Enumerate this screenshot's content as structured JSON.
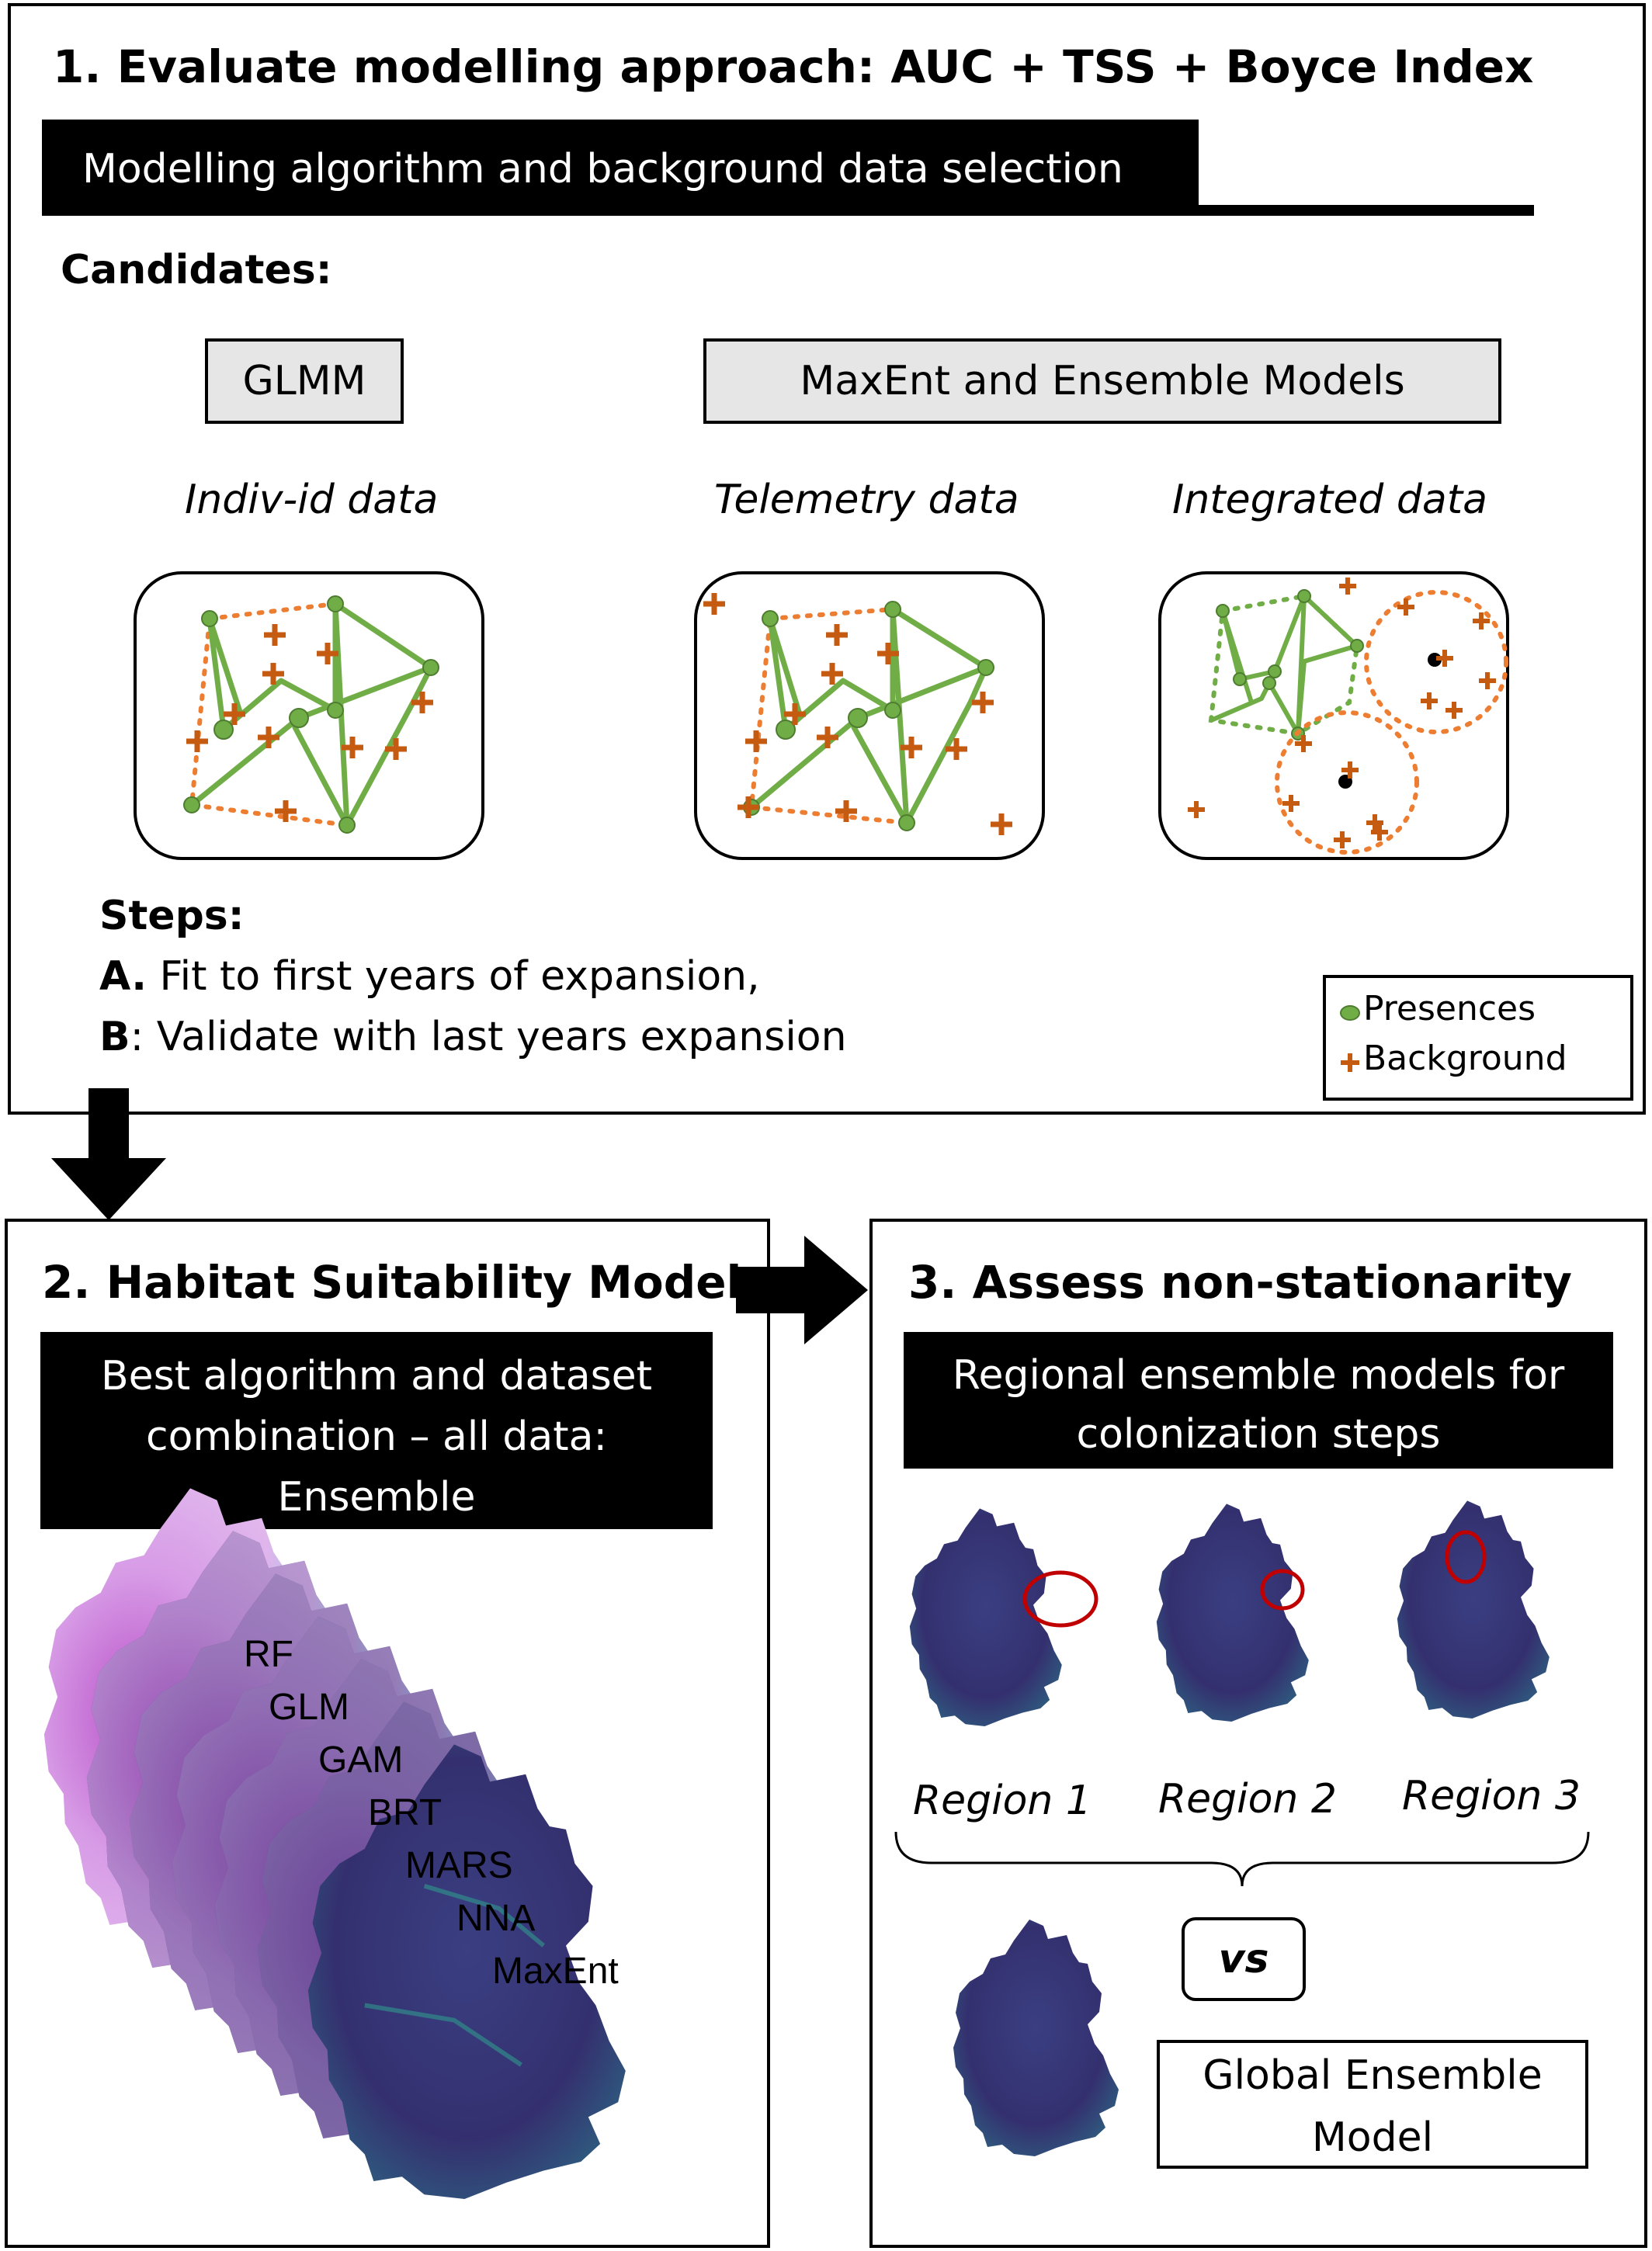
{
  "panel1": {
    "title": "1. Evaluate modelling approach: AUC + TSS + Boyce Index",
    "bar_label": "Modelling algorithm and background data selection",
    "candidates_label": "Candidates:",
    "glmm_label": "GLMM",
    "maxent_label": "MaxEnt and Ensemble Models",
    "data_types": [
      "Indiv-id data",
      "Telemetry data",
      "Integrated data"
    ],
    "steps_label": "Steps:",
    "step_a_key": "A.",
    "step_a_text": " Fit to first years of expansion,",
    "step_b_key": "B",
    "step_b_text": ":  Validate with last years expansion",
    "legend": {
      "presences": "Presences",
      "background": "Background"
    }
  },
  "panel2": {
    "title": "2. Habitat Suitability Model",
    "bar_lines": [
      "Best algorithm and dataset",
      "combination – all data:",
      "Ensemble"
    ],
    "models": [
      "RF",
      "GLM",
      "GAM",
      "BRT",
      "MARS",
      "NNA",
      "MaxEnt"
    ]
  },
  "panel3": {
    "title": "3. Assess non-stationarity",
    "bar_lines": [
      "Regional ensemble models for",
      "colonization steps"
    ],
    "regions": [
      "Region 1",
      "Region 2",
      "Region 3"
    ],
    "vs_label": "vs",
    "global_lines": [
      "Global Ensemble",
      "Model"
    ]
  },
  "colors": {
    "presence_green": "#70ad47",
    "background_orange": "#c55a11",
    "hull_orange": "#ed7d31",
    "map_dark": "#3b2d6e",
    "map_teal": "#2f8f8a",
    "highlight_red": "#c00000"
  }
}
